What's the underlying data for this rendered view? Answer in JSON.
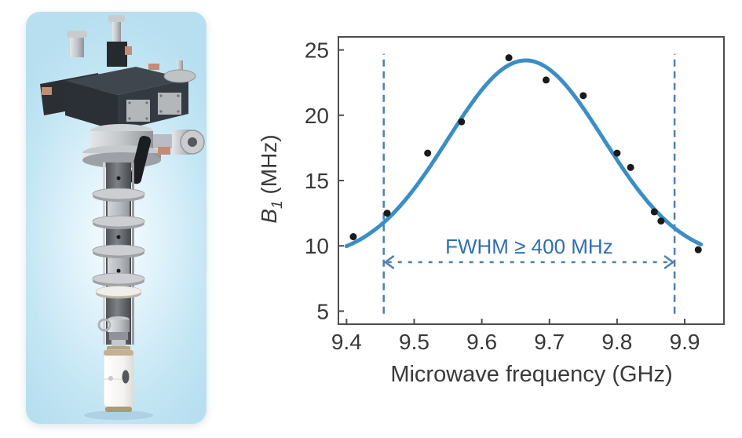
{
  "figure": {
    "left_panel": {
      "background_color": "#c4e6f4",
      "content": "epr-probe-render"
    }
  },
  "chart_data": {
    "type": "scatter",
    "title": "",
    "xlabel": "Microwave frequency (GHz)",
    "ylabel": "B₁ (MHz)",
    "ylabel_parts": {
      "var": "B",
      "sub": "1",
      "unit": " (MHz)"
    },
    "xlim": [
      9.388,
      9.958
    ],
    "ylim": [
      4,
      26
    ],
    "x_ticks": [
      9.4,
      9.5,
      9.6,
      9.7,
      9.8,
      9.9
    ],
    "y_ticks": [
      5,
      10,
      15,
      20,
      25
    ],
    "grid": false,
    "legend_position": "none",
    "points": [
      [
        9.41,
        10.7
      ],
      [
        9.46,
        12.5
      ],
      [
        9.52,
        17.1
      ],
      [
        9.57,
        19.5
      ],
      [
        9.64,
        24.4
      ],
      [
        9.695,
        22.7
      ],
      [
        9.75,
        21.5
      ],
      [
        9.8,
        17.1
      ],
      [
        9.82,
        16.0
      ],
      [
        9.855,
        12.6
      ],
      [
        9.865,
        11.9
      ],
      [
        9.92,
        9.7
      ]
    ],
    "fit_curve": {
      "type": "gaussian",
      "center": 9.665,
      "sigma": 0.115,
      "amplitude": 15.3,
      "offset": 8.9,
      "x_start": 9.4,
      "x_end": 9.925
    },
    "annotation": {
      "text": "FWHM ≥ 400 MHz",
      "x_left": 9.455,
      "x_right": 9.885,
      "arrow_y": 8.75,
      "label_y": 9.4,
      "dash_y_range": [
        4.8,
        24.7
      ]
    },
    "colors": {
      "curve": "#3a8ec5",
      "dashed": "#4e7fb0",
      "annotation_text": "#2f6fb2",
      "points": "#1a1a1a",
      "axis": "#4d4d4d",
      "tick_text": "#383838"
    }
  }
}
